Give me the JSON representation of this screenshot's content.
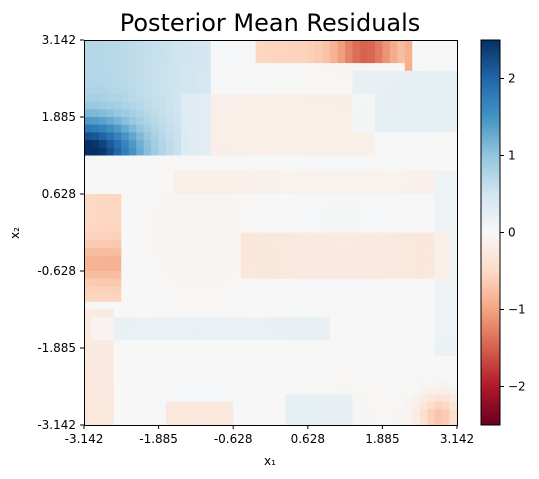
{
  "chart_data": {
    "type": "heatmap",
    "title": "Posterior Mean Residuals",
    "xlabel": "x₁",
    "ylabel": "x₂",
    "xlim": [
      -3.142,
      3.142
    ],
    "ylim": [
      -3.142,
      3.142
    ],
    "xticks": [
      "-3.142",
      "-1.885",
      "-0.628",
      "0.628",
      "1.885",
      "3.142"
    ],
    "yticks": [
      "-3.142",
      "-1.885",
      "-0.628",
      "0.628",
      "1.885",
      "3.142"
    ],
    "colorbar": {
      "colormap": "RdBu",
      "range": [
        -2.5,
        2.5
      ],
      "ticks": [
        "−2",
        "−1",
        "0",
        "1",
        "2"
      ]
    },
    "grid": "50 x 50 cells",
    "features": [
      {
        "region": "upper-left block, x1 -3.142 to -1.0, x2 1.3 to 3.142",
        "value_range": [
          0.3,
          2.5
        ],
        "description": "strong positive residuals, max near (-3.1, 1.4)"
      },
      {
        "region": "top band, x1 0.0 to 2.2, x2 2.8 to 3.142",
        "value_range": [
          -1.6,
          -0.5
        ],
        "description": "negative residuals, min near (1.6, 3.0)"
      },
      {
        "region": "thin vertical strip x1 ≈ 2.4, top",
        "value_range": [
          -1.2,
          -0.5
        ]
      },
      {
        "region": "left strip x1 -3.1 to -2.5, x2 -1.0 to 0.6",
        "value_range": [
          -1.0,
          -0.4
        ]
      },
      {
        "region": "bottom-right corner near (2.8, -3.0)",
        "value_range": [
          -0.9,
          -0.3
        ]
      },
      {
        "region": "broad band x2 ≈ -0.5 to 0.0",
        "value_range": [
          -0.4,
          -0.1
        ]
      }
    ]
  }
}
